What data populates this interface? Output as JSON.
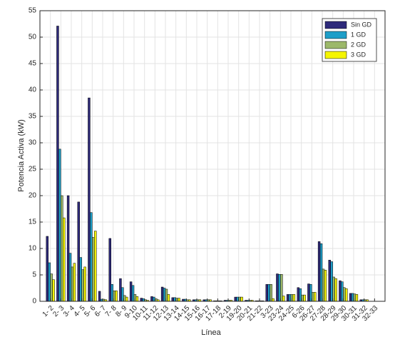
{
  "chart_data": {
    "type": "bar",
    "categories": [
      "1- 2",
      "2- 3",
      "3- 4",
      "4- 5",
      "5- 6",
      "6- 7",
      "7- 8",
      "8- 9",
      "9-10",
      "10-11",
      "11-12",
      "12-13",
      "13-14",
      "14-15",
      "15-16",
      "16-17",
      "17-18",
      "2-19",
      "19-20",
      "20-21",
      "21-22",
      "3-23",
      "23-24",
      "24-25",
      "6-26",
      "26-27",
      "27-28",
      "28-29",
      "29-30",
      "30-31",
      "31-32",
      "32-33"
    ],
    "series": [
      {
        "name": "Sin GD",
        "color": "#2e2a7a",
        "values": [
          12.3,
          52.1,
          20.0,
          18.8,
          38.5,
          1.9,
          11.9,
          4.3,
          3.7,
          0.6,
          0.9,
          2.7,
          0.7,
          0.4,
          0.3,
          0.3,
          0.1,
          0.2,
          0.8,
          0.2,
          0.1,
          3.2,
          5.2,
          1.3,
          2.6,
          3.3,
          11.3,
          7.8,
          3.9,
          1.5,
          0.3,
          0.0
        ]
      },
      {
        "name": "1 GD",
        "color": "#1e9ec8",
        "values": [
          7.3,
          28.8,
          9.1,
          8.3,
          16.8,
          0.4,
          3.2,
          2.6,
          3.0,
          0.5,
          0.8,
          2.5,
          0.7,
          0.4,
          0.3,
          0.3,
          0.1,
          0.2,
          0.8,
          0.2,
          0.1,
          3.2,
          5.1,
          1.3,
          2.4,
          3.2,
          10.9,
          7.5,
          3.7,
          1.5,
          0.3,
          0.0
        ]
      },
      {
        "name": "2 GD",
        "color": "#9cb86a",
        "values": [
          5.2,
          20.0,
          6.5,
          6.0,
          12.1,
          0.4,
          2.0,
          1.1,
          1.3,
          0.3,
          0.5,
          2.3,
          0.6,
          0.3,
          0.3,
          0.3,
          0.1,
          0.2,
          0.8,
          0.2,
          0.1,
          3.2,
          5.1,
          1.3,
          1.2,
          1.7,
          6.1,
          4.6,
          2.6,
          1.4,
          0.3,
          0.0
        ]
      },
      {
        "name": "3 GD",
        "color": "#f5f500",
        "values": [
          4.1,
          15.8,
          7.2,
          6.5,
          13.3,
          0.3,
          2.0,
          0.8,
          0.9,
          0.2,
          0.3,
          1.3,
          0.6,
          0.3,
          0.3,
          0.3,
          0.1,
          0.2,
          0.8,
          0.2,
          0.1,
          0.5,
          1.0,
          1.3,
          1.2,
          1.7,
          5.9,
          4.3,
          2.4,
          1.3,
          0.3,
          0.0
        ]
      }
    ],
    "xlabel": "Línea",
    "ylabel": "Potencia Activa (kW)",
    "ylim": [
      0,
      55
    ],
    "yticks": [
      0,
      5,
      10,
      15,
      20,
      25,
      30,
      35,
      40,
      45,
      50,
      55
    ],
    "grid": true,
    "legend": "upper right"
  }
}
